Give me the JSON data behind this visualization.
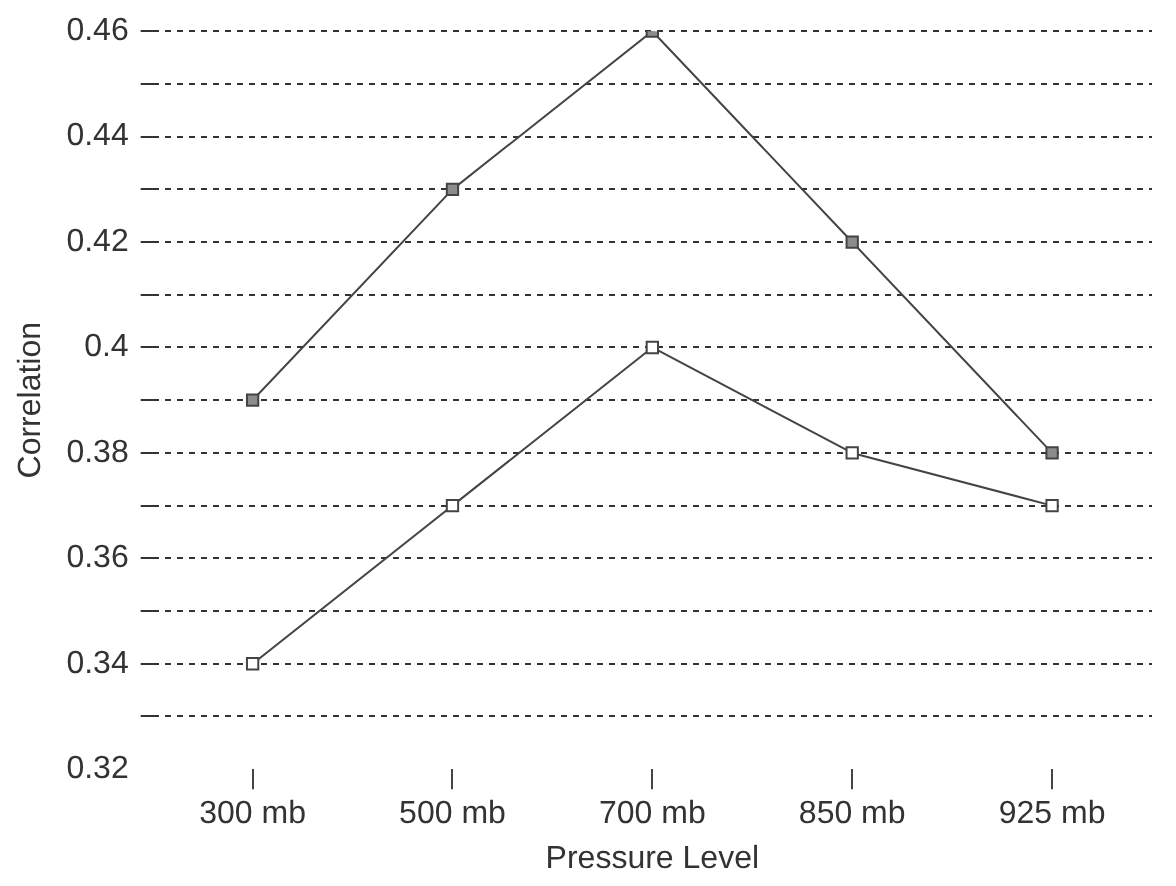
{
  "chart_data": {
    "type": "line",
    "xlabel": "Pressure Level",
    "ylabel": "Correlation",
    "categories": [
      "300 mb",
      "500 mb",
      "700 mb",
      "850 mb",
      "925 mb"
    ],
    "series": [
      {
        "color": "#8c8c8c",
        "values": [
          0.39,
          0.43,
          0.46,
          0.42,
          0.38
        ]
      },
      {
        "color": "#ffffff",
        "values": [
          0.34,
          0.37,
          0.4,
          0.38,
          0.37
        ]
      }
    ],
    "ylim": [
      0.32,
      0.46
    ],
    "yticks": [
      0.32,
      {
        "value": 0.33,
        "label": null
      },
      0.34,
      {
        "value": 0.35,
        "label": null
      },
      0.36,
      {
        "value": 0.37,
        "label": null
      },
      0.38,
      {
        "value": 0.39,
        "label": null
      },
      0.4,
      {
        "value": 0.41,
        "label": null
      },
      0.42,
      {
        "value": 0.43,
        "label": null
      },
      0.44,
      {
        "value": 0.45,
        "label": null
      },
      0.46
    ],
    "grid": "y",
    "legend": false,
    "marker": "square",
    "line_style": "solid"
  }
}
